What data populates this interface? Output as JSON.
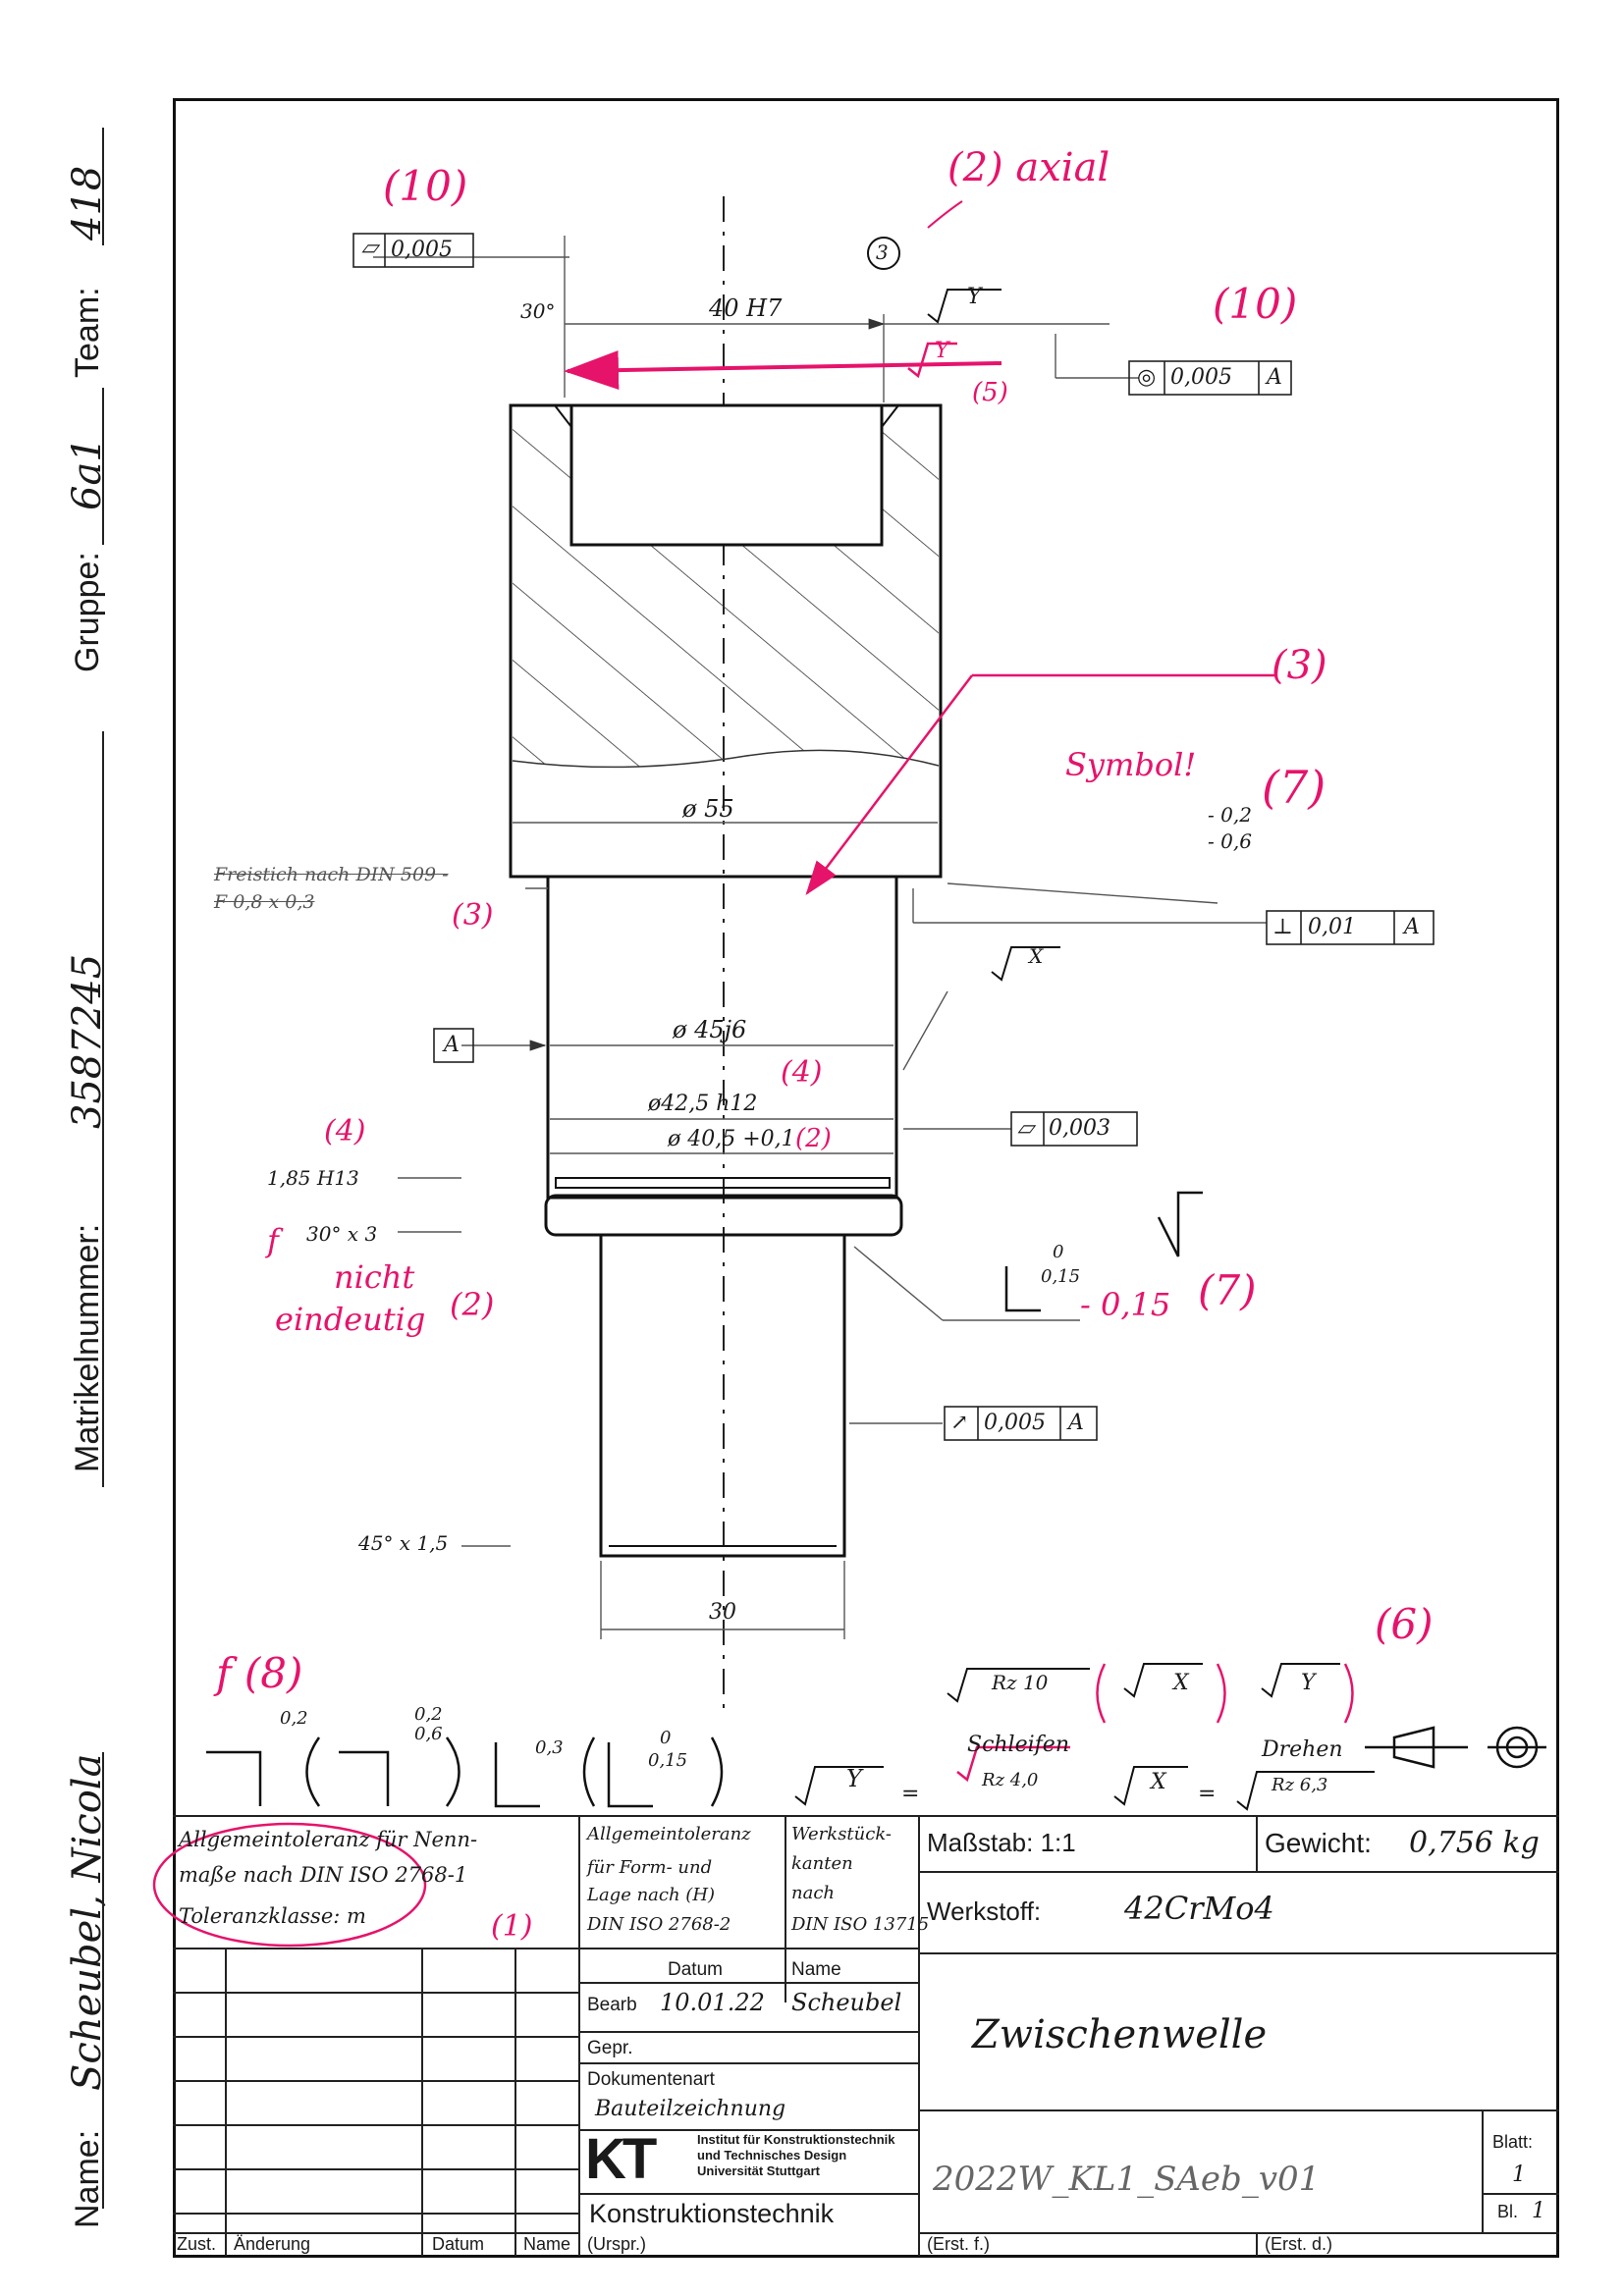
{
  "header": {
    "name_label": "Name:",
    "name_value": "Scheubel, Nicola",
    "matrikel_label": "Matrikelnummer:",
    "matrikel_value": "3587245",
    "gruppe_label": "Gruppe:",
    "gruppe_value": "6a1",
    "team_label": "Team:",
    "team_value": "418"
  },
  "drawing": {
    "tolerance_flat_top": "0,005",
    "bore_dim": "40 H7",
    "chamfer_angle": "30°",
    "conc_tol": "0,005",
    "conc_datum": "A",
    "surface_y": "Y",
    "dia_55": "ø 55",
    "freistich_1": "Freistich nach DIN 509 -",
    "freistich_2": "F 0,8 x 0,3",
    "perp_tol": "0,01",
    "perp_datum": "A",
    "edge_a": "- 0,2",
    "edge_b": "- 0,6",
    "datum_a": "A",
    "surface_x": "X",
    "dia_45": "ø 45j6",
    "dia_42": "ø42,5 h12",
    "dia_40": "ø 40,5 +0,1",
    "flat_tol_2": "0,003",
    "groove_dim": "1,85 H13",
    "chamfer_30": "30° x 3",
    "edge_015_top": "0",
    "edge_015_bot": "0,15",
    "runout_tol": "0,005",
    "runout_datum": "A",
    "chamfer_45": "45° x 1,5",
    "dia_30": "30",
    "edge_sym_1": "0,2",
    "edge_sym_2a": "0,2",
    "edge_sym_2b": "0,6",
    "edge_sym_3": "0,3",
    "edge_sym_4a": "0",
    "edge_sym_4b": "0,15",
    "legend_y": "Y",
    "legend_eq": "=",
    "legend_schleifen": "Schleifen",
    "legend_rz_schleifen": "Rz 4,0",
    "legend_x": "X",
    "legend_drehen": "Drehen",
    "legend_rz_drehen": "Rz 6,3",
    "legend_rz10": "Rz 10"
  },
  "corrections": {
    "c10a": "(10)",
    "c2axial": "(2) axial",
    "c10b": "(10)",
    "c5": "(5)",
    "c3a": "(3)",
    "c3b": "(3)",
    "symbol": "Symbol!",
    "c7a": "(7)",
    "c4a": "(4)",
    "c2b": "(2)",
    "c4b": "(4)",
    "f_mark": "f",
    "nicht": "nicht",
    "eindeutig": "eindeutig",
    "c2c": "(2)",
    "c7b_val": "- 0,15",
    "c7b": "(7)",
    "c6": "(6)",
    "c8": "f (8)",
    "c1": "(1)",
    "circle3": "3"
  },
  "titleblock": {
    "allg1_a": "Allgemeintoleranz für Nenn-",
    "allg1_b": "maße nach DIN ISO 2768-1",
    "allg1_c": "Toleranzklasse: m",
    "allg2_a": "Allgemeintoleranz",
    "allg2_b": "für Form- und",
    "allg2_c": "Lage nach (H)",
    "allg2_d": "DIN ISO 2768-2",
    "werk_a": "Werkstück-",
    "werk_b": "kanten",
    "werk_c": "nach",
    "werk_d": "DIN ISO 13715",
    "massstab": "Maßstab: 1:1",
    "gewicht_label": "Gewicht:",
    "gewicht_value": "0,756 kg",
    "werkstoff_label": "Werkstoff:",
    "werkstoff_value": "42CrMo4",
    "datum_col": "Datum",
    "name_col": "Name",
    "bearb": "Bearb",
    "bearb_datum": "10.01.22",
    "bearb_name": "Scheubel",
    "gepr": "Gepr.",
    "dokumentenart": "Dokumentenart",
    "dokumentenart_value": "Bauteilzeichnung",
    "benennung": "Zwischenwelle",
    "kt_logo": "KT",
    "inst1": "Institut für Konstruktionstechnik",
    "inst2": "und Technisches Design",
    "inst3": "Universität Stuttgart",
    "konstruktionstechnik": "Konstruktionstechnik",
    "drawing_no": "2022W_KL1_SAeb_v01",
    "blatt": "Blatt:",
    "blatt_value": "1",
    "bl": "Bl.",
    "bl_value": "1",
    "zust": "Zust.",
    "aenderung": "Änderung",
    "datum_bottom": "Datum",
    "name_bottom": "Name",
    "urspr": "(Urspr.)",
    "erst_f": "(Erst. f.)",
    "erst_d": "(Erst. d.)"
  }
}
